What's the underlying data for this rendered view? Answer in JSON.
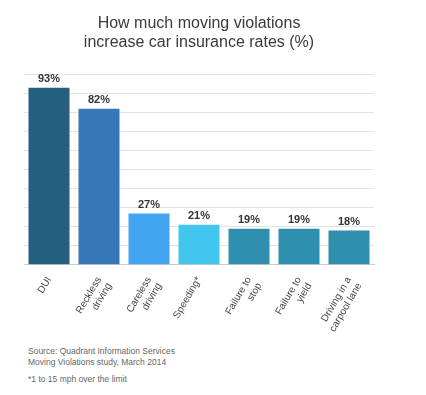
{
  "chart_data": {
    "type": "bar",
    "title": "How much moving violations increase car insurance rates (%)",
    "categories": [
      "DUI",
      "Reckless driving",
      "Careless driving",
      "Speeding*",
      "Failure to stop",
      "Failure to yield",
      "Driving in a carpool lane"
    ],
    "values": [
      93,
      82,
      27,
      21,
      19,
      19,
      18
    ],
    "value_labels": [
      "93%",
      "82%",
      "27%",
      "21%",
      "19%",
      "19%",
      "18%"
    ],
    "colors": [
      "#255e7e",
      "#3677b8",
      "#42a5f0",
      "#43c6ee",
      "#2e8fae",
      "#2e8fae",
      "#2e8fae"
    ],
    "ylim": [
      0,
      100
    ],
    "yticks": [
      0,
      10,
      20,
      30,
      40,
      50,
      60,
      70,
      80,
      90,
      100
    ],
    "grid": true,
    "data_labels": true,
    "tick_labels": "x",
    "annotations": [
      "Source: Quadrant Information Services",
      "Moving Violations study, March 2014",
      "*1 to 15 mph over the limit"
    ]
  }
}
